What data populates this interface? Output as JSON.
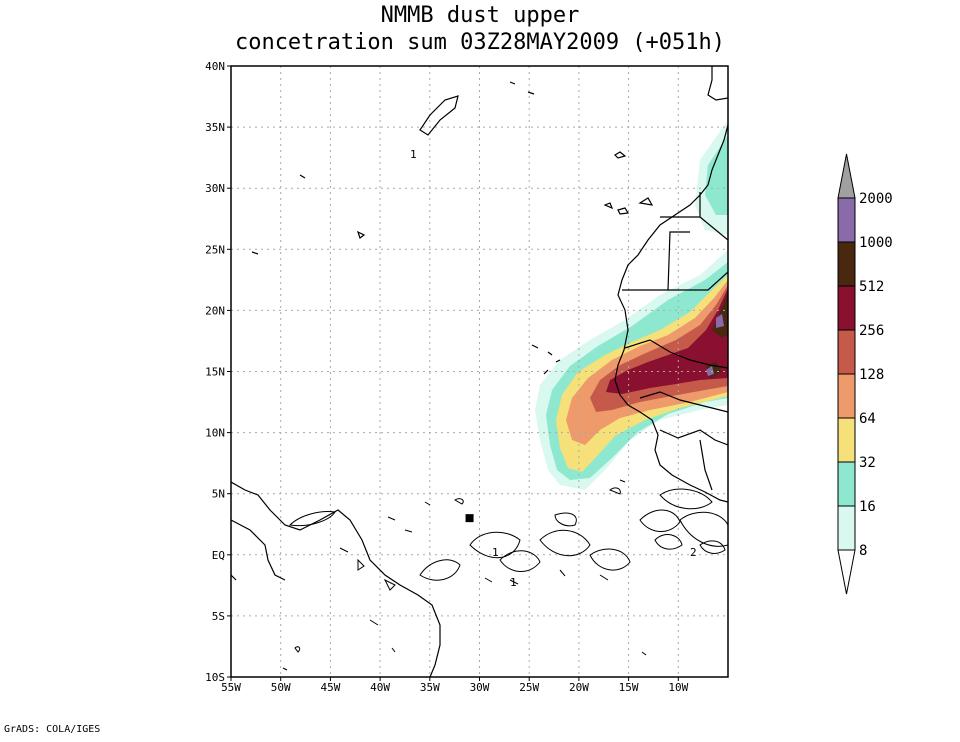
{
  "title": {
    "line1": "NMMB dust upper",
    "line2": "concetration sum 03Z28MAY2009 (+051h)"
  },
  "footer": "GrADS: COLA/IGES",
  "map": {
    "lon_range": [
      -55,
      -5
    ],
    "lat_range": [
      -10,
      40
    ],
    "lon_ticks": [
      {
        "value": -55,
        "label": "55W"
      },
      {
        "value": -50,
        "label": "50W"
      },
      {
        "value": -45,
        "label": "45W"
      },
      {
        "value": -40,
        "label": "40W"
      },
      {
        "value": -35,
        "label": "35W"
      },
      {
        "value": -30,
        "label": "30W"
      },
      {
        "value": -25,
        "label": "25W"
      },
      {
        "value": -20,
        "label": "20W"
      },
      {
        "value": -15,
        "label": "15W"
      },
      {
        "value": -10,
        "label": "10W"
      }
    ],
    "lat_ticks": [
      {
        "value": 40,
        "label": "40N"
      },
      {
        "value": 35,
        "label": "35N"
      },
      {
        "value": 30,
        "label": "30N"
      },
      {
        "value": 25,
        "label": "25N"
      },
      {
        "value": 20,
        "label": "20N"
      },
      {
        "value": 15,
        "label": "15N"
      },
      {
        "value": 10,
        "label": "10N"
      },
      {
        "value": 5,
        "label": "5N"
      },
      {
        "value": 0,
        "label": "EQ"
      },
      {
        "value": -5,
        "label": "5S"
      },
      {
        "value": -10,
        "label": "10S"
      }
    ],
    "station_marker": {
      "lon": -31,
      "lat": 3
    }
  },
  "colorbar": {
    "levels": [
      {
        "label": "8",
        "color": "#d8f8f0"
      },
      {
        "label": "16",
        "color": "#8ee8d0"
      },
      {
        "label": "32",
        "color": "#f5e07a"
      },
      {
        "label": "64",
        "color": "#ef9a6a"
      },
      {
        "label": "128",
        "color": "#c65a4a"
      },
      {
        "label": "256",
        "color": "#8a1030"
      },
      {
        "label": "512",
        "color": "#4a2810"
      },
      {
        "label": "1000",
        "color": "#8a6aa8"
      },
      {
        "label": "2000",
        "color": ""
      }
    ],
    "top_color": "#a0a0a0",
    "bottom_color": "#ffffff"
  },
  "contour_labels": [
    "1",
    "1",
    "1",
    "2"
  ]
}
